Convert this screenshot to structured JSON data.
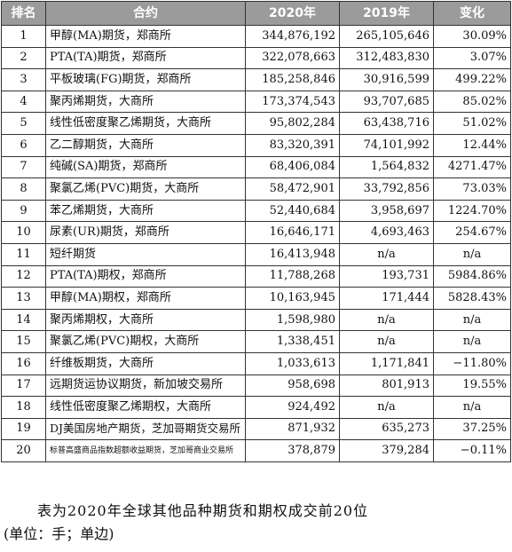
{
  "table": {
    "headers": [
      "排名",
      "合约",
      "2020年",
      "2019年",
      "变化"
    ],
    "rows": [
      {
        "rank": "1",
        "contract": "甲醇(MA)期货，郑商所",
        "y2020": "344,876,192",
        "y2019": "265,105,646",
        "change": "30.09%"
      },
      {
        "rank": "2",
        "contract": "PTA(TA)期货，郑商所",
        "y2020": "322,078,663",
        "y2019": "312,483,830",
        "change": "3.07%"
      },
      {
        "rank": "3",
        "contract": "平板玻璃(FG)期货，郑商所",
        "y2020": "185,258,846",
        "y2019": "30,916,599",
        "change": "499.22%"
      },
      {
        "rank": "4",
        "contract": "聚丙烯期货，大商所",
        "y2020": "173,374,543",
        "y2019": "93,707,685",
        "change": "85.02%"
      },
      {
        "rank": "5",
        "contract": "线性低密度聚乙烯期货，大商所",
        "y2020": "95,802,284",
        "y2019": "63,438,716",
        "change": "51.02%"
      },
      {
        "rank": "6",
        "contract": "乙二醇期货，大商所",
        "y2020": "83,320,391",
        "y2019": "74,101,992",
        "change": "12.44%"
      },
      {
        "rank": "7",
        "contract": "纯碱(SA)期货，郑商所",
        "y2020": "68,406,084",
        "y2019": "1,564,832",
        "change": "4271.47%"
      },
      {
        "rank": "8",
        "contract": "聚氯乙烯(PVC)期货，大商所",
        "y2020": "58,472,901",
        "y2019": "33,792,856",
        "change": "73.03%"
      },
      {
        "rank": "9",
        "contract": "苯乙烯期货，大商所",
        "y2020": "52,440,684",
        "y2019": "3,958,697",
        "change": "1224.70%"
      },
      {
        "rank": "10",
        "contract": "尿素(UR)期货，郑商所",
        "y2020": "16,646,171",
        "y2019": "4,693,463",
        "change": "254.67%"
      },
      {
        "rank": "11",
        "contract": "短纤期货",
        "y2020": "16,413,948",
        "y2019": "n/a",
        "change": "n/a"
      },
      {
        "rank": "12",
        "contract": "PTA(TA)期权，郑商所",
        "y2020": "11,788,268",
        "y2019": "193,731",
        "change": "5984.86%"
      },
      {
        "rank": "13",
        "contract": "甲醇(MA)期权，郑商所",
        "y2020": "10,163,945",
        "y2019": "171,444",
        "change": "5828.43%"
      },
      {
        "rank": "14",
        "contract": "聚丙烯期权，大商所",
        "y2020": "1,598,980",
        "y2019": "n/a",
        "change": "n/a"
      },
      {
        "rank": "15",
        "contract": "聚氯乙烯(PVC)期权，大商所",
        "y2020": "1,338,451",
        "y2019": "n/a",
        "change": "n/a"
      },
      {
        "rank": "16",
        "contract": "纤维板期货，大商所",
        "y2020": "1,033,613",
        "y2019": "1,171,841",
        "change": "−11.80%"
      },
      {
        "rank": "17",
        "contract": "远期货运协议期货，新加坡交易所",
        "y2020": "958,698",
        "y2019": "801,913",
        "change": "19.55%"
      },
      {
        "rank": "18",
        "contract": "线性低密度聚乙烯期权，大商所",
        "y2020": "924,492",
        "y2019": "n/a",
        "change": "n/a"
      },
      {
        "rank": "19",
        "contract": "DJ美国房地产期货，芝加哥期货交易所",
        "y2020": "871,932",
        "y2019": "635,273",
        "change": "37.25%"
      },
      {
        "rank": "20",
        "contract": "标普高盛商品指数超额收益期货，芝加哥商业交易所",
        "y2020": "378,879",
        "y2019": "379,284",
        "change": "−0.11%"
      }
    ]
  },
  "caption": {
    "line1": "表为2020年全球其他品种期货和期权成交前20位",
    "line2": "(单位：手；单边)"
  }
}
